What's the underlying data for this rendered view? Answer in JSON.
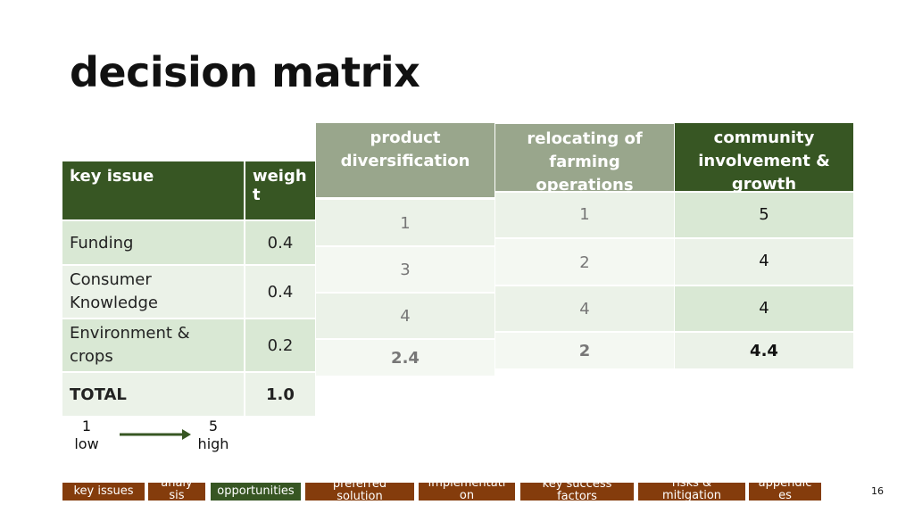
{
  "slide": {
    "title": "decision matrix",
    "page_number": "16"
  },
  "key_table": {
    "headers": [
      "key issue",
      "weigh\nt"
    ],
    "rows": [
      {
        "issue": "Funding",
        "weight": "0.4"
      },
      {
        "issue": "Consumer Knowledge",
        "weight": "0.4"
      },
      {
        "issue": "Environment & crops",
        "weight": "0.2"
      },
      {
        "issue": "TOTAL",
        "weight": "1.0"
      }
    ]
  },
  "options": [
    {
      "name": "product diversification",
      "scores": [
        "1",
        "3",
        "4"
      ],
      "total": "2.4"
    },
    {
      "name": "relocating of farming operations",
      "scores": [
        "1",
        "2",
        "4"
      ],
      "total": "2"
    },
    {
      "name": "community involvement & growth",
      "scores": [
        "5",
        "4",
        "4"
      ],
      "total": "4.4"
    }
  ],
  "legend": {
    "low_value": "1",
    "low_label": "low",
    "high_value": "5",
    "high_label": "high"
  },
  "nav": [
    {
      "label": "key issues"
    },
    {
      "label": "analysis"
    },
    {
      "label": "opportunities"
    },
    {
      "label": "preferred solution"
    },
    {
      "label": "implementation"
    },
    {
      "label": "key success factors"
    },
    {
      "label": "risks & mitigation"
    },
    {
      "label": "appendices"
    }
  ],
  "colors": {
    "dark_green": "#375623",
    "mid_green": "#99a68c",
    "light_green": "#d9e8d4",
    "pale_green": "#ebf2e8",
    "nav_brown": "#843c0c"
  }
}
